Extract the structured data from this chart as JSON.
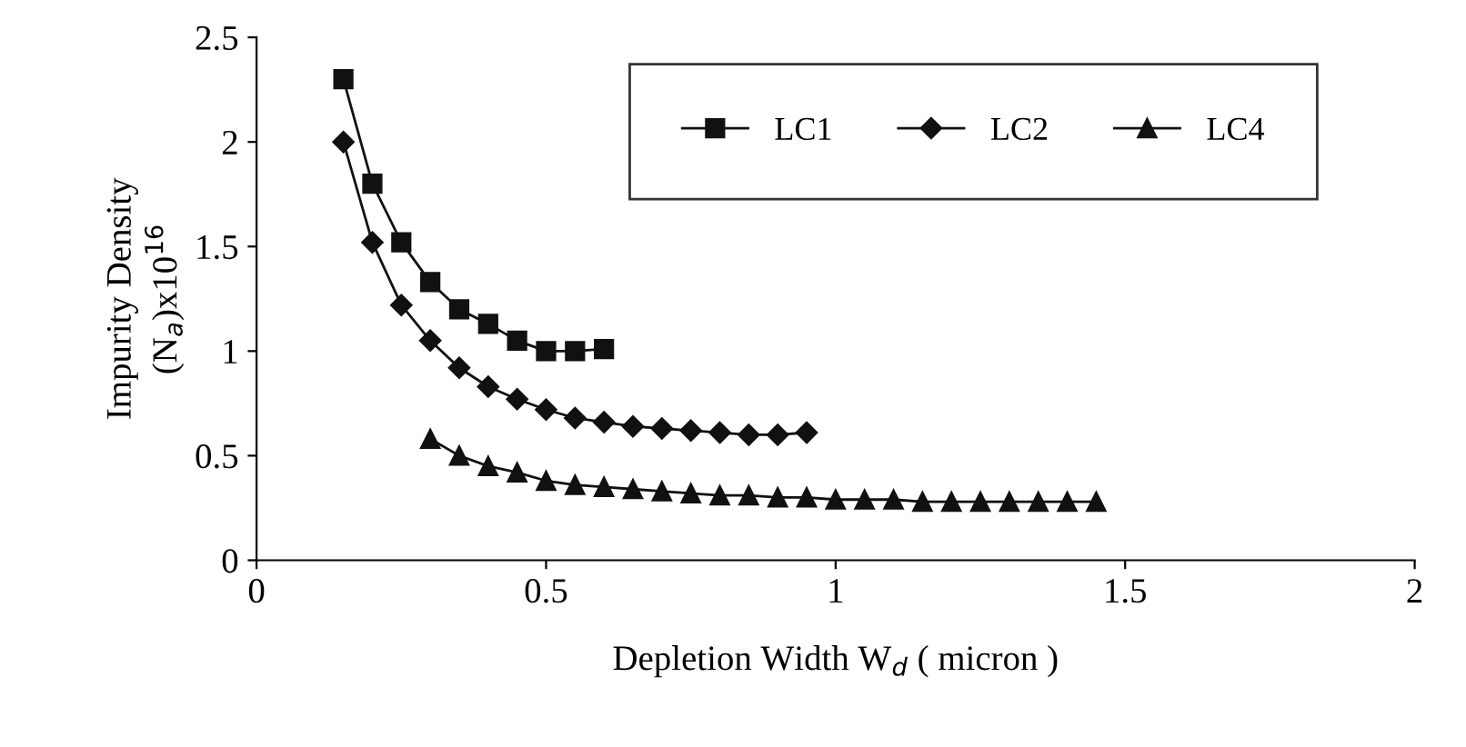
{
  "chart_data": {
    "type": "line",
    "xlabel": "Depletion Width W$_{d}$ ( micron )",
    "ylabel": "Impurity Density\n(N$_{a}$)x10$^{16}$",
    "xlim": [
      0,
      2
    ],
    "xticks": [
      0,
      0.5,
      1,
      1.5,
      2
    ],
    "ylim": [
      0,
      2.5
    ],
    "yticks": [
      0,
      0.5,
      1,
      1.5,
      2,
      2.5
    ],
    "grid": false,
    "legend": "top right",
    "line_style": "solid",
    "series": [
      {
        "name": "LC1",
        "color": "#111111",
        "marker": "square",
        "x": [
          0.15,
          0.2,
          0.25,
          0.3,
          0.35,
          0.4,
          0.45,
          0.5,
          0.55,
          0.6
        ],
        "values": [
          2.3,
          1.8,
          1.52,
          1.33,
          1.2,
          1.13,
          1.05,
          1.0,
          1.0,
          1.01
        ]
      },
      {
        "name": "LC2",
        "color": "#111111",
        "marker": "diamond",
        "x": [
          0.15,
          0.2,
          0.25,
          0.3,
          0.35,
          0.4,
          0.45,
          0.5,
          0.55,
          0.6,
          0.65,
          0.7,
          0.75,
          0.8,
          0.85,
          0.9,
          0.95
        ],
        "values": [
          2.0,
          1.52,
          1.22,
          1.05,
          0.92,
          0.83,
          0.77,
          0.72,
          0.68,
          0.66,
          0.64,
          0.63,
          0.62,
          0.61,
          0.6,
          0.6,
          0.61
        ]
      },
      {
        "name": "LC4",
        "color": "#111111",
        "marker": "triangle",
        "x": [
          0.3,
          0.35,
          0.4,
          0.45,
          0.5,
          0.55,
          0.6,
          0.65,
          0.7,
          0.75,
          0.8,
          0.85,
          0.9,
          0.95,
          1.0,
          1.05,
          1.1,
          1.15,
          1.2,
          1.25,
          1.3,
          1.35,
          1.4,
          1.45
        ],
        "values": [
          0.58,
          0.5,
          0.45,
          0.42,
          0.38,
          0.36,
          0.35,
          0.34,
          0.33,
          0.32,
          0.31,
          0.31,
          0.3,
          0.3,
          0.29,
          0.29,
          0.29,
          0.28,
          0.28,
          0.28,
          0.28,
          0.28,
          0.28,
          0.28
        ]
      }
    ]
  }
}
